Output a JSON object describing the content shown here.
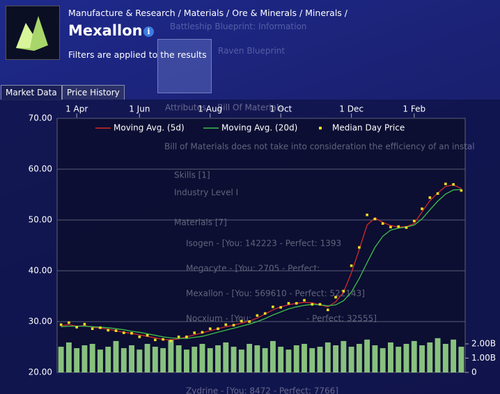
{
  "header": {
    "breadcrumb": "Manufacture & Research / Materials / Ore & Minerals / Minerals /",
    "title": "Mexallon",
    "note": "Filters are applied to the results"
  },
  "tabs": [
    "Market Data",
    "Price History"
  ],
  "background_window": {
    "title": "Battleship Blueprint: Information",
    "item": "Raven Blueprint",
    "tabs": [
      "Attributes",
      "Bill Of Materials"
    ],
    "note": "Bill of Materials does not take into consideration the efficiency of an instal",
    "lines": [
      "Skills [1]",
      "Industry Level I",
      "Materials [7]",
      "Isogen - [You: 142223 - Perfect: 1393",
      "Megacyte - [You: 2705 - Perfect:",
      "Mexallon - [You: 569610 - Perfect: 522143]",
      "Nocxium - [You:",
      "- Perfect: 32555]",
      "Zydrine - [You: 8472 - Perfect: 7766]"
    ]
  },
  "chart_data": {
    "type": "line",
    "legend": "top",
    "categories": [
      null,
      null,
      "1 Apr",
      null,
      null,
      null,
      null,
      null,
      null,
      null,
      "1 Jun",
      null,
      null,
      null,
      null,
      null,
      null,
      null,
      null,
      "1 Aug",
      null,
      null,
      null,
      null,
      null,
      null,
      null,
      null,
      "1 Oct",
      null,
      null,
      null,
      null,
      null,
      null,
      null,
      null,
      "1 Dec",
      null,
      null,
      null,
      null,
      null,
      null,
      null,
      "1 Feb",
      null,
      null,
      null,
      null,
      null,
      null
    ],
    "ylim": [
      20,
      70
    ],
    "yticks": [
      {
        "value": 20,
        "label": "20.00"
      },
      {
        "value": 30,
        "label": "30.00"
      },
      {
        "value": 40,
        "label": "40.00"
      },
      {
        "value": 50,
        "label": "50.00"
      },
      {
        "value": 60,
        "label": "60.00"
      },
      {
        "value": 70,
        "label": "70.00"
      }
    ],
    "y2lim": [
      0,
      17800000000
    ],
    "y2ticks": [
      0,
      {
        "value": 1000000000,
        "label": "1.00B"
      },
      {
        "value": 2000000000,
        "label": "2.00B"
      }
    ],
    "grid": true,
    "series": [
      {
        "name": "Moving Avg. (5d)",
        "color": "#d42a2a",
        "mark": "line",
        "values": [
          29.2,
          29.4,
          29.1,
          29.2,
          28.9,
          28.7,
          28.5,
          28.2,
          27.9,
          27.7,
          27.4,
          27.1,
          26.8,
          26.5,
          26.4,
          26.6,
          27.0,
          27.4,
          27.8,
          28.2,
          28.6,
          29.0,
          29.3,
          29.7,
          30.1,
          30.7,
          31.5,
          32.3,
          32.9,
          33.3,
          33.6,
          33.8,
          33.7,
          33.3,
          32.9,
          33.9,
          35.8,
          39.6,
          44.2,
          49.0,
          50.4,
          49.5,
          48.9,
          48.6,
          48.7,
          49.3,
          51.6,
          53.8,
          55.3,
          56.6,
          56.9,
          56.2
        ]
      },
      {
        "name": "Moving Avg. (20d)",
        "color": "#3fbf4a",
        "mark": "line",
        "values": [
          29.0,
          29.1,
          29.1,
          29.1,
          29.0,
          28.9,
          28.8,
          28.6,
          28.4,
          28.1,
          27.9,
          27.6,
          27.3,
          27.0,
          26.8,
          26.7,
          26.7,
          26.9,
          27.1,
          27.5,
          27.9,
          28.3,
          28.7,
          29.1,
          29.5,
          30.0,
          30.6,
          31.3,
          31.9,
          32.5,
          32.9,
          33.2,
          33.4,
          33.3,
          33.1,
          33.3,
          34.1,
          35.8,
          38.5,
          41.6,
          44.6,
          46.8,
          48.0,
          48.4,
          48.6,
          49.0,
          50.2,
          52.0,
          53.7,
          55.1,
          55.9,
          56.0
        ]
      },
      {
        "name": "Median Day Price",
        "color": "#f2e01c",
        "mark": "dot",
        "values": [
          29.4,
          29.8,
          28.9,
          29.5,
          28.6,
          28.8,
          28.3,
          28.2,
          27.8,
          27.7,
          27.0,
          27.3,
          26.4,
          26.5,
          26.2,
          27.0,
          27.0,
          27.8,
          27.9,
          28.6,
          28.6,
          29.4,
          29.3,
          30.1,
          30.0,
          31.2,
          31.6,
          32.9,
          32.8,
          33.6,
          33.6,
          34.2,
          33.4,
          33.4,
          32.3,
          34.8,
          36.0,
          41.0,
          44.6,
          51.0,
          50.2,
          49.3,
          48.6,
          48.7,
          48.5,
          49.8,
          52.2,
          54.4,
          55.2,
          57.1,
          57.0,
          55.8
        ]
      }
    ],
    "volume": {
      "color": "#9fe08c",
      "axis": "y2",
      "values": [
        1800000000,
        2100000000,
        1700000000,
        1900000000,
        2000000000,
        1600000000,
        1800000000,
        2200000000,
        1700000000,
        1900000000,
        1600000000,
        2000000000,
        1800000000,
        1700000000,
        2300000000,
        1900000000,
        1600000000,
        1800000000,
        2000000000,
        1700000000,
        1900000000,
        2100000000,
        1800000000,
        1600000000,
        2000000000,
        1900000000,
        1700000000,
        2200000000,
        1800000000,
        1600000000,
        1900000000,
        2000000000,
        1700000000,
        1800000000,
        2100000000,
        1900000000,
        2200000000,
        1800000000,
        2000000000,
        2300000000,
        1900000000,
        1700000000,
        2100000000,
        1800000000,
        2000000000,
        2200000000,
        1900000000,
        2100000000,
        2400000000,
        2000000000,
        2300000000,
        1800000000
      ]
    }
  }
}
